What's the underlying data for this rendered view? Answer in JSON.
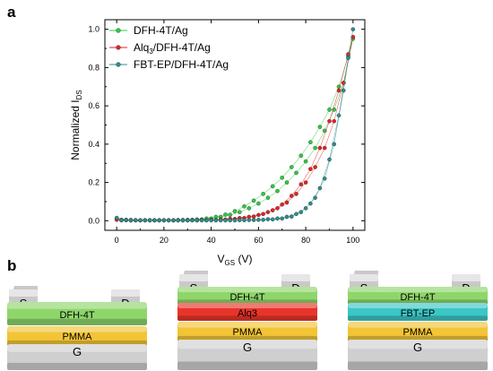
{
  "panel_labels": {
    "a": "a",
    "b": "b"
  },
  "chart_data": {
    "type": "scatter",
    "xlabel": "V",
    "xlabel_sub": "GS",
    "xlabel_unit": " (V)",
    "ylabel": "Normalized I",
    "ylabel_sub": "DS",
    "xlim": [
      -5,
      105
    ],
    "ylim": [
      -0.05,
      1.05
    ],
    "x_ticks": [
      0,
      20,
      40,
      60,
      80,
      100
    ],
    "y_ticks": [
      0.0,
      0.2,
      0.4,
      0.6,
      0.8,
      1.0
    ],
    "x_tick_labels": [
      "0",
      "20",
      "40",
      "60",
      "80",
      "100"
    ],
    "y_tick_labels": [
      "0.0",
      "0.2",
      "0.4",
      "0.6",
      "0.8",
      "1.0"
    ],
    "grid": false,
    "legend_position": "top-left",
    "series": [
      {
        "name": "DFH-4T/Ag",
        "color": "#2ecc40",
        "up": [
          [
            0,
            0.01
          ],
          [
            4,
            0.005
          ],
          [
            8,
            0.003
          ],
          [
            12,
            0.003
          ],
          [
            16,
            0.003
          ],
          [
            20,
            0.003
          ],
          [
            24,
            0.003
          ],
          [
            28,
            0.004
          ],
          [
            32,
            0.005
          ],
          [
            36,
            0.007
          ],
          [
            40,
            0.012
          ],
          [
            44,
            0.02
          ],
          [
            48,
            0.03
          ],
          [
            52,
            0.045
          ],
          [
            56,
            0.065
          ],
          [
            60,
            0.09
          ],
          [
            64,
            0.12
          ],
          [
            68,
            0.155
          ],
          [
            72,
            0.2
          ],
          [
            76,
            0.25
          ],
          [
            80,
            0.31
          ],
          [
            84,
            0.38
          ],
          [
            88,
            0.47
          ],
          [
            92,
            0.58
          ],
          [
            96,
            0.72
          ],
          [
            100,
            0.95
          ]
        ],
        "down": [
          [
            98,
            0.86
          ],
          [
            94,
            0.7
          ],
          [
            90,
            0.58
          ],
          [
            86,
            0.49
          ],
          [
            82,
            0.41
          ],
          [
            78,
            0.34
          ],
          [
            74,
            0.28
          ],
          [
            70,
            0.225
          ],
          [
            66,
            0.18
          ],
          [
            62,
            0.14
          ],
          [
            58,
            0.105
          ],
          [
            54,
            0.075
          ],
          [
            50,
            0.05
          ],
          [
            46,
            0.032
          ],
          [
            42,
            0.02
          ],
          [
            38,
            0.012
          ],
          [
            34,
            0.007
          ],
          [
            30,
            0.005
          ],
          [
            26,
            0.004
          ],
          [
            22,
            0.003
          ],
          [
            18,
            0.003
          ],
          [
            14,
            0.003
          ],
          [
            10,
            0.003
          ],
          [
            6,
            0.004
          ],
          [
            2,
            0.005
          ]
        ]
      },
      {
        "name": "Alq",
        "name_sub": "3",
        "name_rest": "/DFH-4T/Ag",
        "color": "#e52222",
        "up": [
          [
            0,
            0.005
          ],
          [
            4,
            0.003
          ],
          [
            8,
            0.002
          ],
          [
            12,
            0.002
          ],
          [
            16,
            0.002
          ],
          [
            20,
            0.002
          ],
          [
            24,
            0.002
          ],
          [
            28,
            0.002
          ],
          [
            32,
            0.003
          ],
          [
            36,
            0.004
          ],
          [
            40,
            0.005
          ],
          [
            44,
            0.007
          ],
          [
            48,
            0.01
          ],
          [
            52,
            0.014
          ],
          [
            56,
            0.02
          ],
          [
            60,
            0.03
          ],
          [
            64,
            0.045
          ],
          [
            68,
            0.065
          ],
          [
            72,
            0.095
          ],
          [
            76,
            0.14
          ],
          [
            80,
            0.2
          ],
          [
            84,
            0.28
          ],
          [
            88,
            0.38
          ],
          [
            92,
            0.52
          ],
          [
            96,
            0.72
          ],
          [
            100,
            0.96
          ]
        ],
        "down": [
          [
            98,
            0.87
          ],
          [
            94,
            0.68
          ],
          [
            90,
            0.52
          ],
          [
            86,
            0.38
          ],
          [
            82,
            0.27
          ],
          [
            78,
            0.19
          ],
          [
            74,
            0.13
          ],
          [
            70,
            0.085
          ],
          [
            66,
            0.055
          ],
          [
            62,
            0.035
          ],
          [
            58,
            0.022
          ],
          [
            54,
            0.014
          ],
          [
            50,
            0.009
          ],
          [
            46,
            0.006
          ],
          [
            42,
            0.004
          ],
          [
            38,
            0.003
          ],
          [
            34,
            0.002
          ],
          [
            30,
            0.002
          ],
          [
            26,
            0.002
          ],
          [
            22,
            0.002
          ],
          [
            18,
            0.002
          ],
          [
            14,
            0.002
          ],
          [
            10,
            0.002
          ],
          [
            6,
            0.002
          ],
          [
            2,
            0.003
          ]
        ]
      },
      {
        "name": "FBT-EP/DFH-4T/Ag",
        "color": "#2a8f8f",
        "up": [
          [
            0,
            0.015
          ],
          [
            4,
            0.004
          ],
          [
            8,
            0.003
          ],
          [
            12,
            0.002
          ],
          [
            16,
            0.002
          ],
          [
            20,
            0.002
          ],
          [
            24,
            0.002
          ],
          [
            28,
            0.002
          ],
          [
            32,
            0.002
          ],
          [
            36,
            0.002
          ],
          [
            40,
            0.002
          ],
          [
            44,
            0.002
          ],
          [
            48,
            0.002
          ],
          [
            52,
            0.003
          ],
          [
            56,
            0.004
          ],
          [
            60,
            0.005
          ],
          [
            64,
            0.008
          ],
          [
            68,
            0.012
          ],
          [
            72,
            0.02
          ],
          [
            76,
            0.035
          ],
          [
            80,
            0.065
          ],
          [
            84,
            0.12
          ],
          [
            88,
            0.22
          ],
          [
            92,
            0.4
          ],
          [
            96,
            0.68
          ],
          [
            100,
            1.0
          ]
        ],
        "down": [
          [
            98,
            0.85
          ],
          [
            94,
            0.55
          ],
          [
            90,
            0.32
          ],
          [
            86,
            0.17
          ],
          [
            82,
            0.09
          ],
          [
            78,
            0.045
          ],
          [
            74,
            0.022
          ],
          [
            70,
            0.012
          ],
          [
            66,
            0.007
          ],
          [
            62,
            0.005
          ],
          [
            58,
            0.004
          ],
          [
            54,
            0.003
          ],
          [
            50,
            0.002
          ],
          [
            46,
            0.002
          ],
          [
            42,
            0.002
          ],
          [
            38,
            0.002
          ],
          [
            34,
            0.002
          ],
          [
            30,
            0.002
          ],
          [
            26,
            0.002
          ],
          [
            22,
            0.002
          ],
          [
            18,
            0.002
          ],
          [
            14,
            0.002
          ],
          [
            10,
            0.002
          ],
          [
            6,
            0.002
          ],
          [
            2,
            0.002
          ]
        ]
      }
    ]
  },
  "devices": [
    {
      "source": "S",
      "drain": "D",
      "layers": [
        {
          "label": "DFH-4T",
          "color": "#8ed66a"
        }
      ],
      "dielectric": "PMMA",
      "gate": "G"
    },
    {
      "source": "S",
      "drain": "D",
      "layers": [
        {
          "label": "DFH-4T",
          "color": "#8ed66a"
        },
        {
          "label": "Alq3",
          "color": "#e8342a"
        }
      ],
      "dielectric": "PMMA",
      "gate": "G"
    },
    {
      "source": "S",
      "drain": "D",
      "layers": [
        {
          "label": "DFH-4T",
          "color": "#8ed66a"
        },
        {
          "label": "FBT-EP",
          "color": "#3cc6c6"
        }
      ],
      "dielectric": "PMMA",
      "gate": "G"
    }
  ],
  "colors": {
    "pmma": "#f2c436",
    "gate": "#cfcfcf",
    "contact": "#c9c9c9"
  }
}
